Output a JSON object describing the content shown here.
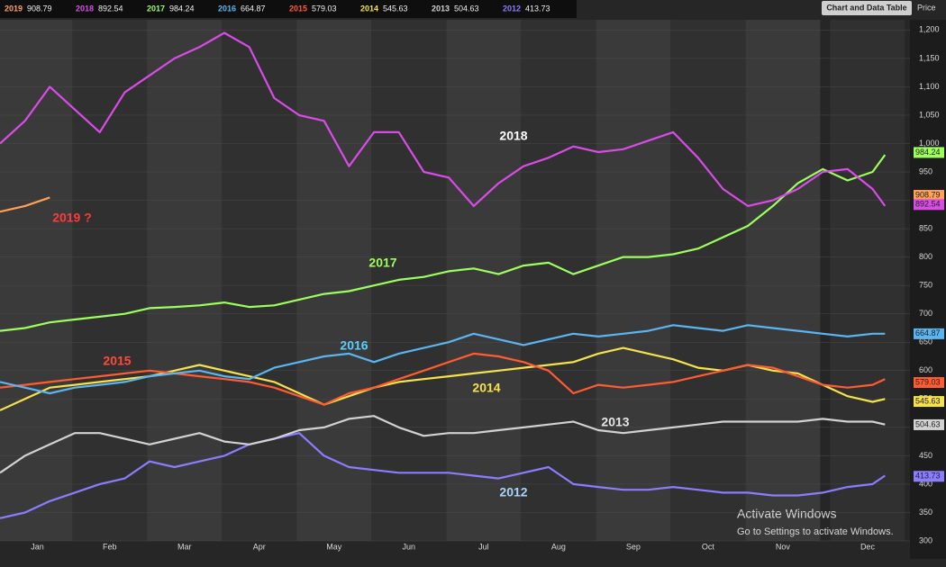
{
  "chart_data": {
    "type": "line",
    "y_label": "Price",
    "x": [
      0,
      10,
      20,
      30,
      40,
      50,
      60,
      70,
      80,
      90,
      100,
      110,
      120,
      130,
      140,
      150,
      160,
      170,
      180,
      190,
      200,
      210,
      220,
      230,
      240,
      250,
      260,
      270,
      280,
      290,
      300,
      310,
      320,
      330,
      340,
      350,
      355
    ],
    "xlim": [
      0,
      365
    ],
    "xticks": [
      {
        "value": 15,
        "label": "Jan"
      },
      {
        "value": 44,
        "label": "Feb"
      },
      {
        "value": 74,
        "label": "Mar"
      },
      {
        "value": 104,
        "label": "Apr"
      },
      {
        "value": 134,
        "label": "May"
      },
      {
        "value": 164,
        "label": "Jun"
      },
      {
        "value": 194,
        "label": "Jul"
      },
      {
        "value": 224,
        "label": "Aug"
      },
      {
        "value": 254,
        "label": "Sep"
      },
      {
        "value": 284,
        "label": "Oct"
      },
      {
        "value": 314,
        "label": "Nov"
      },
      {
        "value": 348,
        "label": "Dec"
      }
    ],
    "ylim": [
      300,
      1218
    ],
    "yticks": [
      300,
      350,
      400,
      450,
      500,
      550,
      600,
      650,
      700,
      750,
      800,
      850,
      900,
      950,
      {
        "value": 1000,
        "label": "1,000"
      },
      {
        "value": 1050,
        "label": "1,050"
      },
      {
        "value": 1100,
        "label": "1,100"
      },
      {
        "value": 1150,
        "label": "1,150"
      },
      {
        "value": 1200,
        "label": "1,200"
      }
    ],
    "grid": true,
    "series": [
      {
        "name": "2019",
        "color": "#ffa257",
        "last_value": 908.79,
        "values": [
          880,
          890,
          905,
          null,
          null,
          null,
          null,
          null,
          null,
          null,
          null,
          null,
          null,
          null,
          null,
          null,
          null,
          null,
          null,
          null,
          null,
          null,
          null,
          null,
          null,
          null,
          null,
          null,
          null,
          null,
          null,
          null,
          null,
          null,
          null,
          null,
          null
        ]
      },
      {
        "name": "2018",
        "color": "#d94ce8",
        "last_value": 892.54,
        "values": [
          1000,
          1040,
          1100,
          1060,
          1020,
          1090,
          1120,
          1150,
          1170,
          1195,
          1170,
          1080,
          1050,
          1040,
          960,
          1020,
          1020,
          950,
          940,
          890,
          930,
          960,
          975,
          995,
          985,
          990,
          1005,
          1020,
          975,
          920,
          890,
          900,
          920,
          950,
          955,
          920,
          890
        ]
      },
      {
        "name": "2017",
        "color": "#9dff5c",
        "last_value": 984.24,
        "values": [
          670,
          675,
          685,
          690,
          695,
          700,
          710,
          712,
          715,
          720,
          712,
          715,
          725,
          735,
          740,
          750,
          760,
          765,
          775,
          780,
          770,
          785,
          790,
          770,
          785,
          800,
          800,
          805,
          815,
          835,
          855,
          890,
          930,
          955,
          935,
          950,
          980
        ]
      },
      {
        "name": "2016",
        "color": "#5ab6f2",
        "last_value": 664.87,
        "values": [
          580,
          570,
          560,
          570,
          575,
          580,
          590,
          595,
          600,
          590,
          585,
          605,
          615,
          625,
          630,
          615,
          630,
          640,
          650,
          665,
          655,
          645,
          655,
          665,
          660,
          665,
          670,
          680,
          675,
          670,
          680,
          675,
          670,
          665,
          660,
          665,
          665
        ]
      },
      {
        "name": "2015",
        "color": "#ff5c32",
        "last_value": 579.03,
        "values": [
          570,
          575,
          580,
          585,
          590,
          595,
          600,
          595,
          590,
          585,
          580,
          570,
          555,
          540,
          560,
          570,
          585,
          600,
          615,
          630,
          625,
          615,
          600,
          560,
          575,
          570,
          575,
          580,
          590,
          600,
          610,
          605,
          590,
          575,
          570,
          575,
          585
        ]
      },
      {
        "name": "2014",
        "color": "#f5e24c",
        "last_value": 545.63,
        "values": [
          530,
          550,
          570,
          575,
          580,
          585,
          590,
          600,
          610,
          600,
          590,
          580,
          560,
          540,
          555,
          570,
          580,
          585,
          590,
          595,
          600,
          605,
          610,
          615,
          630,
          640,
          630,
          620,
          605,
          600,
          610,
          600,
          595,
          575,
          555,
          545,
          550
        ]
      },
      {
        "name": "2013",
        "color": "#d2d2d2",
        "last_value": 504.63,
        "values": [
          420,
          450,
          470,
          490,
          490,
          480,
          470,
          480,
          490,
          475,
          470,
          480,
          495,
          500,
          515,
          520,
          500,
          485,
          490,
          490,
          495,
          500,
          505,
          510,
          495,
          490,
          495,
          500,
          505,
          510,
          510,
          510,
          510,
          515,
          510,
          510,
          505
        ]
      },
      {
        "name": "2012",
        "color": "#8c7cff",
        "last_value": 413.73,
        "values": [
          340,
          350,
          370,
          385,
          400,
          410,
          440,
          430,
          440,
          450,
          470,
          480,
          490,
          450,
          430,
          425,
          420,
          420,
          420,
          415,
          410,
          420,
          430,
          400,
          395,
          390,
          390,
          395,
          390,
          385,
          385,
          380,
          380,
          385,
          395,
          400,
          415
        ]
      }
    ],
    "annotations": [
      "2018",
      "2017",
      "2016",
      "2015",
      "2014",
      "2013",
      "2012",
      "2019 ?"
    ]
  },
  "button": "Chart and Data Table",
  "watermark": {
    "title": "Activate Windows",
    "subtitle": "Go to Settings to activate Windows."
  }
}
